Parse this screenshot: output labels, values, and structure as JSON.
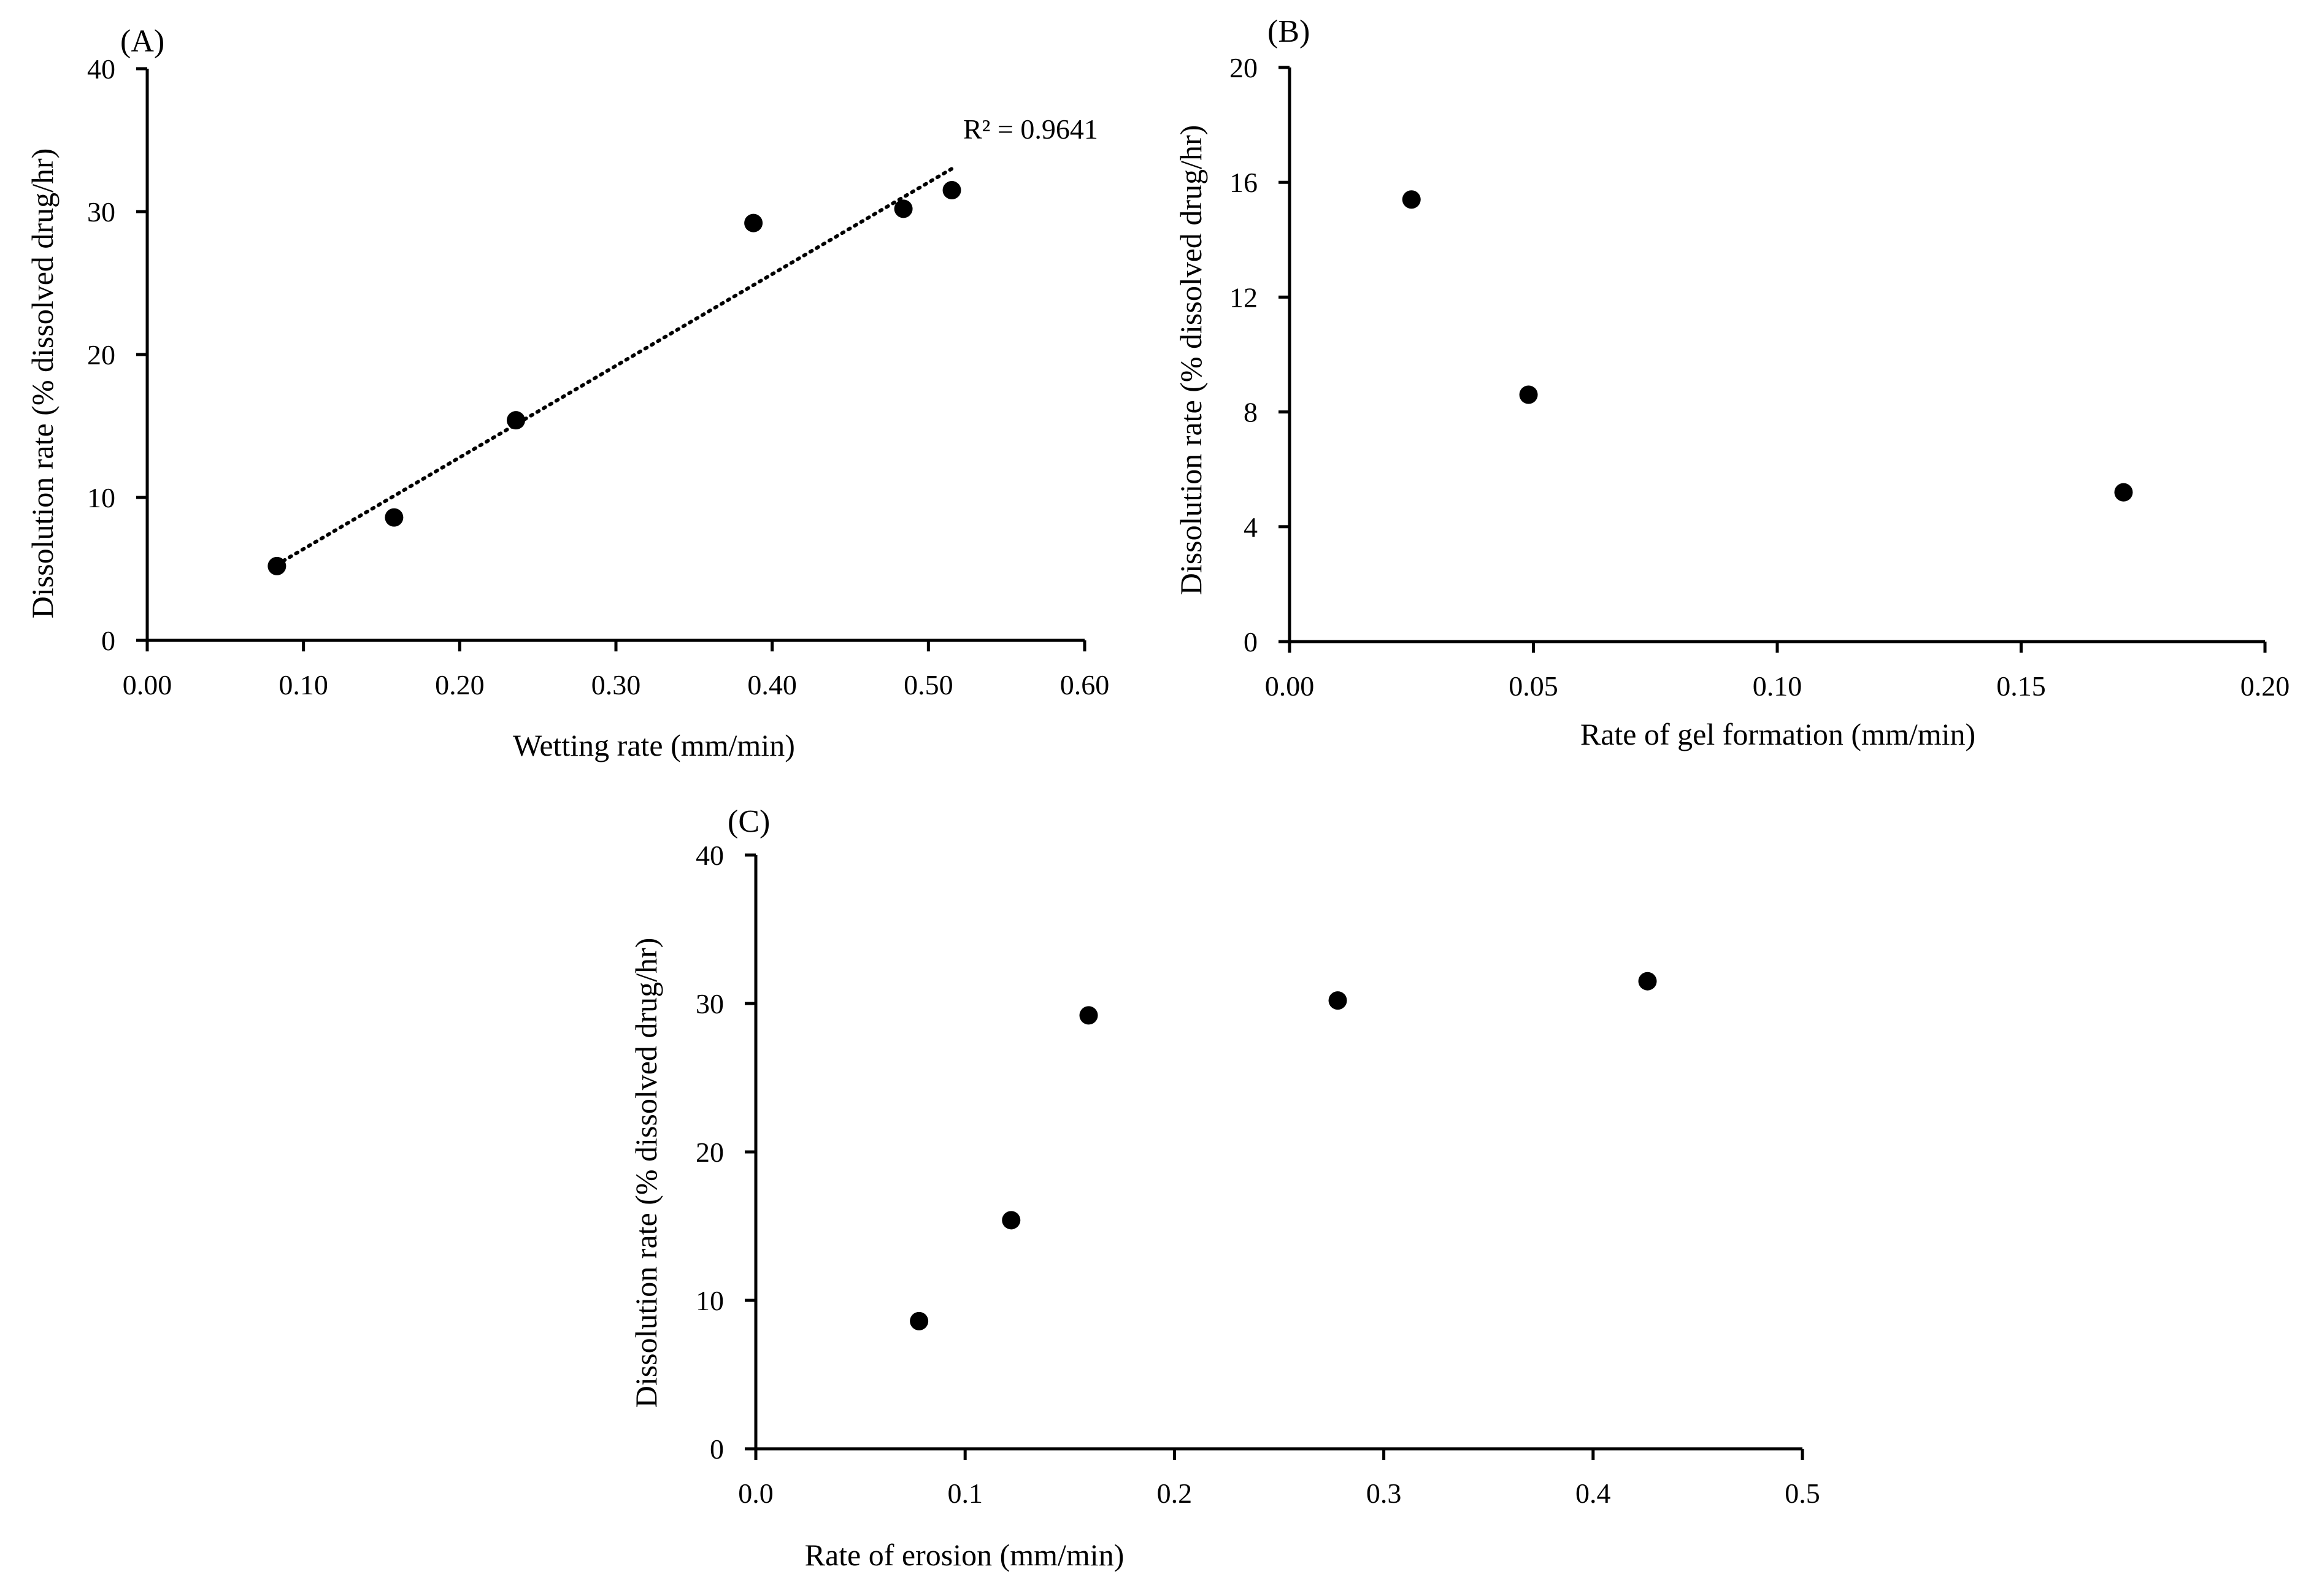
{
  "colors": {
    "marker": "#000000",
    "axis": "#000000",
    "background": "#ffffff"
  },
  "chart_data": [
    {
      "type": "scatter",
      "panel": "(A)",
      "xlabel": "Wetting rate (mm/min)",
      "ylabel": "Dissolution rate (% dissolved drug/hr)",
      "xlim": [
        0,
        0.6
      ],
      "ylim": [
        0,
        40
      ],
      "xticks": [
        "0.00",
        "0.10",
        "0.20",
        "0.30",
        "0.40",
        "0.50",
        "0.60"
      ],
      "yticks": [
        "0",
        "10",
        "20",
        "30",
        "40"
      ],
      "points": [
        {
          "x": 0.083,
          "y": 5.2
        },
        {
          "x": 0.158,
          "y": 8.6
        },
        {
          "x": 0.236,
          "y": 15.4
        },
        {
          "x": 0.388,
          "y": 29.2
        },
        {
          "x": 0.484,
          "y": 30.2
        },
        {
          "x": 0.515,
          "y": 31.5
        }
      ],
      "trendline": {
        "style": "dotted",
        "from": [
          0.083,
          5.3
        ],
        "to": [
          0.515,
          33.0
        ]
      },
      "annotation": "R² = 0.9641"
    },
    {
      "type": "scatter",
      "panel": "(B)",
      "xlabel": "Rate of gel formation (mm/min)",
      "ylabel": "Dissolution rate (% dissolved drug/hr)",
      "xlim": [
        0,
        0.2
      ],
      "ylim": [
        0,
        20
      ],
      "xticks": [
        "0.00",
        "0.05",
        "0.10",
        "0.15",
        "0.20"
      ],
      "yticks": [
        "0",
        "4",
        "8",
        "12",
        "16",
        "20"
      ],
      "points": [
        {
          "x": 0.025,
          "y": 15.4
        },
        {
          "x": 0.049,
          "y": 8.6
        },
        {
          "x": 0.171,
          "y": 5.2
        }
      ]
    },
    {
      "type": "scatter",
      "panel": "(C)",
      "xlabel": "Rate of erosion (mm/min)",
      "ylabel": "Dissolution rate (% dissolved drug/hr)",
      "xlim": [
        0,
        0.5
      ],
      "ylim": [
        0,
        40
      ],
      "xticks": [
        "0.0",
        "0.1",
        "0.2",
        "0.3",
        "0.4",
        "0.5"
      ],
      "yticks": [
        "0",
        "10",
        "20",
        "30",
        "40"
      ],
      "points": [
        {
          "x": 0.078,
          "y": 8.6
        },
        {
          "x": 0.122,
          "y": 15.4
        },
        {
          "x": 0.159,
          "y": 29.2
        },
        {
          "x": 0.278,
          "y": 30.2
        },
        {
          "x": 0.426,
          "y": 31.5
        }
      ]
    }
  ]
}
